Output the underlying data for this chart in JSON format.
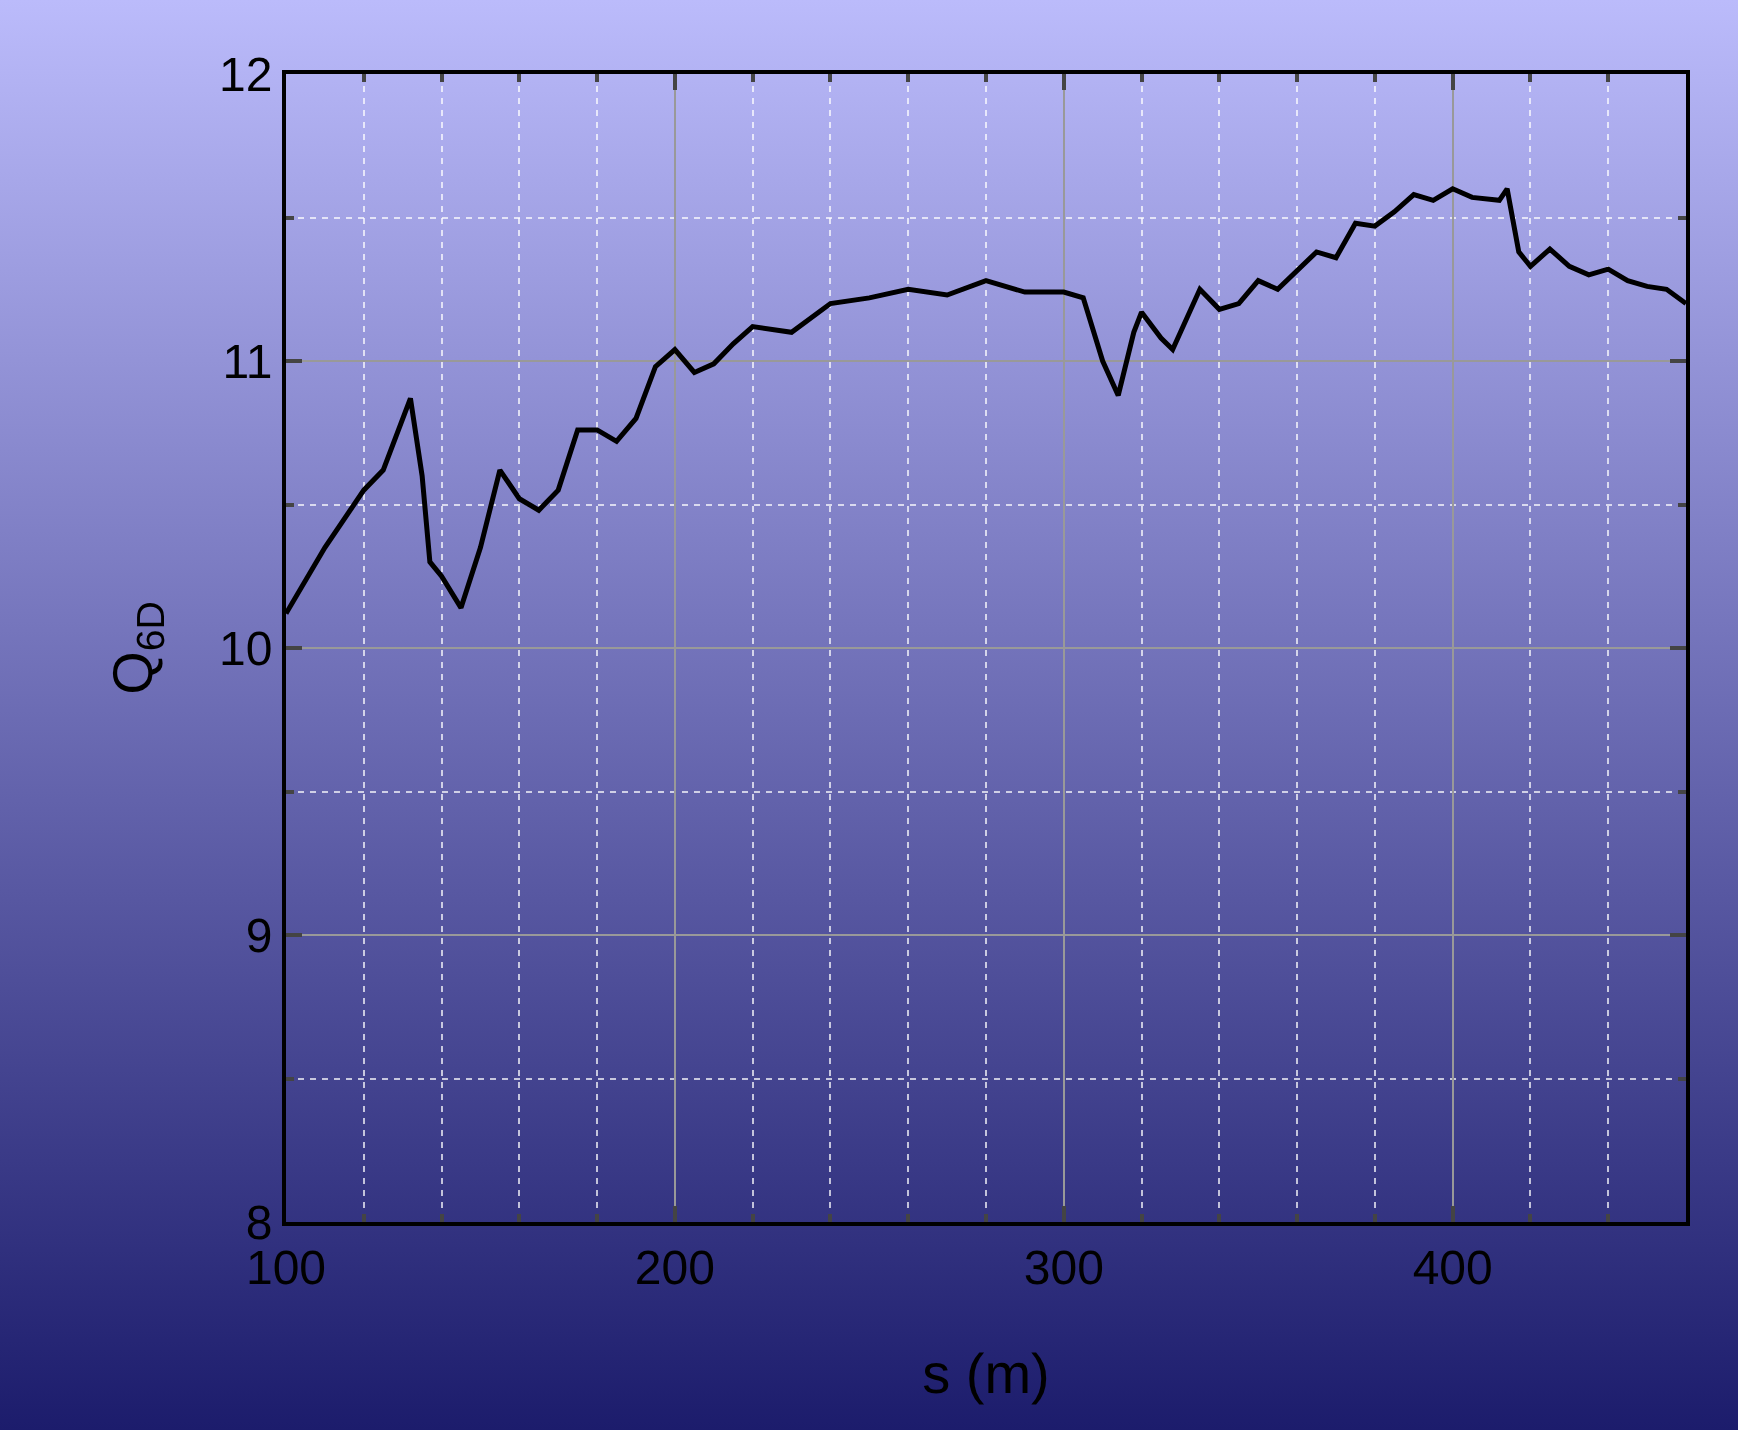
{
  "chart_data": {
    "type": "line",
    "xlabel": "s (m)",
    "ylabel": "Q$_{6D}$",
    "x": [
      100,
      110,
      120,
      125,
      132,
      135,
      137,
      140,
      145,
      150,
      155,
      160,
      165,
      170,
      175,
      180,
      185,
      190,
      195,
      200,
      205,
      210,
      215,
      220,
      230,
      240,
      250,
      260,
      270,
      280,
      290,
      300,
      305,
      310,
      314,
      318,
      320,
      325,
      328,
      335,
      340,
      345,
      350,
      355,
      365,
      370,
      375,
      380,
      385,
      390,
      395,
      400,
      405,
      412,
      414,
      417,
      420,
      425,
      430,
      435,
      440,
      445,
      450,
      455,
      460
    ],
    "series": [
      {
        "color": "#000000",
        "values": [
          10.12,
          10.35,
          10.55,
          10.62,
          10.87,
          10.6,
          10.3,
          10.25,
          10.14,
          10.35,
          10.62,
          10.52,
          10.48,
          10.55,
          10.76,
          10.76,
          10.72,
          10.8,
          10.98,
          11.04,
          10.96,
          10.99,
          11.06,
          11.12,
          11.1,
          11.2,
          11.22,
          11.25,
          11.23,
          11.28,
          11.24,
          11.24,
          11.22,
          11.0,
          10.88,
          11.1,
          11.17,
          11.08,
          11.04,
          11.25,
          11.18,
          11.2,
          11.28,
          11.25,
          11.38,
          11.36,
          11.48,
          11.47,
          11.52,
          11.58,
          11.56,
          11.6,
          11.57,
          11.56,
          11.6,
          11.38,
          11.33,
          11.39,
          11.33,
          11.3,
          11.32,
          11.28,
          11.26,
          11.25,
          11.2
        ]
      }
    ],
    "xlim": [
      100,
      460
    ],
    "xticks": [
      100,
      200,
      300,
      400
    ],
    "ylim": [
      8,
      12
    ],
    "yticks": [
      8,
      9,
      10,
      11,
      12
    ],
    "grid": true,
    "marker": "none",
    "line_style": "solid"
  }
}
